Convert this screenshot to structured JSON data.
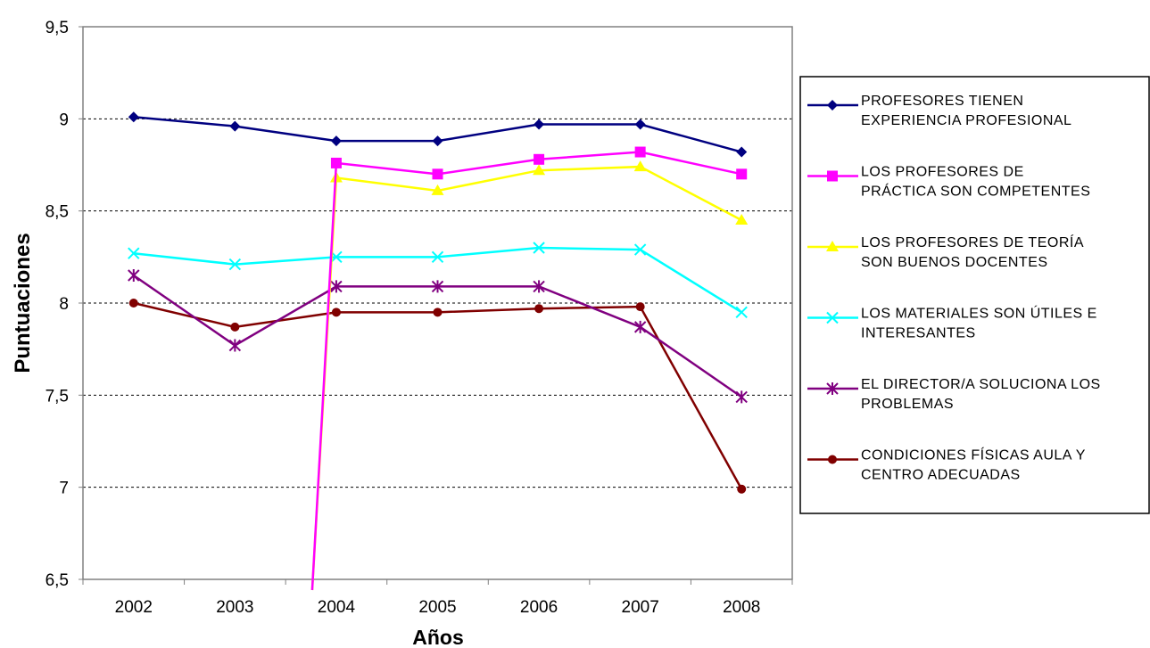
{
  "chart_data": {
    "type": "line",
    "xlabel": "Años",
    "ylabel": "Puntuaciones",
    "ylim": [
      6.5,
      9.5
    ],
    "yticks": [
      "6,5",
      "7",
      "7,5",
      "8",
      "8,5",
      "9",
      "9,5"
    ],
    "ytick_values": [
      6.5,
      7,
      7.5,
      8,
      8.5,
      9,
      9.5
    ],
    "grid": "horizontal dashed",
    "legend_position": "right",
    "categories": [
      "2002",
      "2003",
      "2004",
      "2005",
      "2006",
      "2007",
      "2008"
    ],
    "series": [
      {
        "name": "PROFESORES TIENEN EXPERIENCIA PROFESIONAL",
        "name_lines": [
          "PROFESORES TIENEN",
          "EXPERIENCIA PROFESIONAL"
        ],
        "color": "#000080",
        "marker": "diamond",
        "values": [
          9.01,
          8.96,
          8.88,
          8.88,
          8.97,
          8.97,
          8.82
        ]
      },
      {
        "name": "LOS PROFESORES DE PRÁCTICA SON COMPETENTES",
        "name_lines": [
          "LOS PROFESORES DE",
          "PRÁCTICA SON COMPETENTES"
        ],
        "color": "#ff00ff",
        "marker": "square",
        "values": [
          null,
          null,
          8.76,
          8.7,
          8.78,
          8.82,
          8.7
        ]
      },
      {
        "name": "LOS PROFESORES DE TEORÍA SON BUENOS DOCENTES",
        "name_lines": [
          "LOS PROFESORES DE TEORÍA",
          "SON BUENOS DOCENTES"
        ],
        "color": "#ffff00",
        "marker": "triangle",
        "values": [
          null,
          null,
          8.68,
          8.61,
          8.72,
          8.74,
          8.45
        ]
      },
      {
        "name": "LOS MATERIALES SON ÚTILES E INTERESANTES",
        "name_lines": [
          "LOS MATERIALES SON ÚTILES E",
          "INTERESANTES"
        ],
        "color": "#00ffff",
        "marker": "x",
        "values": [
          8.27,
          8.21,
          8.25,
          8.25,
          8.3,
          8.29,
          7.95
        ]
      },
      {
        "name": "EL DIRECTOR/A SOLUCIONA LOS PROBLEMAS",
        "name_lines": [
          "EL DIRECTOR/A SOLUCIONA LOS",
          "PROBLEMAS"
        ],
        "color": "#800080",
        "marker": "star",
        "values": [
          8.15,
          7.77,
          8.09,
          8.09,
          8.09,
          7.87,
          7.49
        ]
      },
      {
        "name": "CONDICIONES FÍSICAS AULA Y CENTRO ADECUADAS",
        "name_lines": [
          "CONDICIONES FÍSICAS AULA Y",
          "CENTRO ADECUADAS"
        ],
        "color": "#800000",
        "marker": "circle",
        "values": [
          8.0,
          7.87,
          7.95,
          7.95,
          7.97,
          7.98,
          6.99
        ]
      }
    ]
  }
}
